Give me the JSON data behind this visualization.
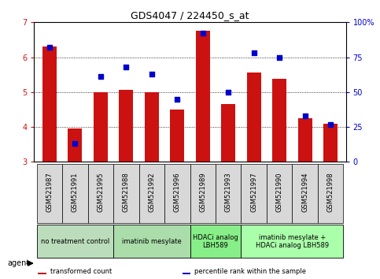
{
  "title": "GDS4047 / 224450_s_at",
  "samples": [
    "GSM521987",
    "GSM521991",
    "GSM521995",
    "GSM521988",
    "GSM521992",
    "GSM521996",
    "GSM521989",
    "GSM521993",
    "GSM521997",
    "GSM521990",
    "GSM521994",
    "GSM521998"
  ],
  "bar_values": [
    6.3,
    3.95,
    5.0,
    5.07,
    5.0,
    4.5,
    6.75,
    4.65,
    5.55,
    5.38,
    4.25,
    4.1
  ],
  "percentile_values": [
    82,
    13,
    61,
    68,
    63,
    45,
    92,
    50,
    78,
    75,
    33,
    27
  ],
  "ylim_left": [
    3,
    7
  ],
  "ylim_right": [
    0,
    100
  ],
  "yticks_left": [
    3,
    4,
    5,
    6,
    7
  ],
  "yticks_right": [
    0,
    25,
    50,
    75,
    100
  ],
  "bar_color": "#cc1111",
  "dot_color": "#0000cc",
  "bar_width": 0.55,
  "groups": [
    {
      "label": "no treatment control",
      "indices": [
        0,
        1,
        2
      ],
      "color": "#bbddbb"
    },
    {
      "label": "imatinib mesylate",
      "indices": [
        3,
        4,
        5
      ],
      "color": "#aaddaa"
    },
    {
      "label": "HDACi analog\nLBH589",
      "indices": [
        6,
        7
      ],
      "color": "#88ee88"
    },
    {
      "label": "imatinib mesylate +\nHDACi analog LBH589",
      "indices": [
        8,
        9,
        10,
        11
      ],
      "color": "#aaffaa"
    }
  ],
  "legend_items": [
    {
      "label": "transformed count",
      "color": "#cc1111"
    },
    {
      "label": "percentile rank within the sample",
      "color": "#0000cc"
    }
  ],
  "agent_label": "agent",
  "bg_color": "#ffffff",
  "sample_box_color": "#d8d8d8",
  "grid_color": "black",
  "title_fontsize": 9,
  "axis_fontsize": 7,
  "sample_fontsize": 6,
  "group_fontsize": 6
}
